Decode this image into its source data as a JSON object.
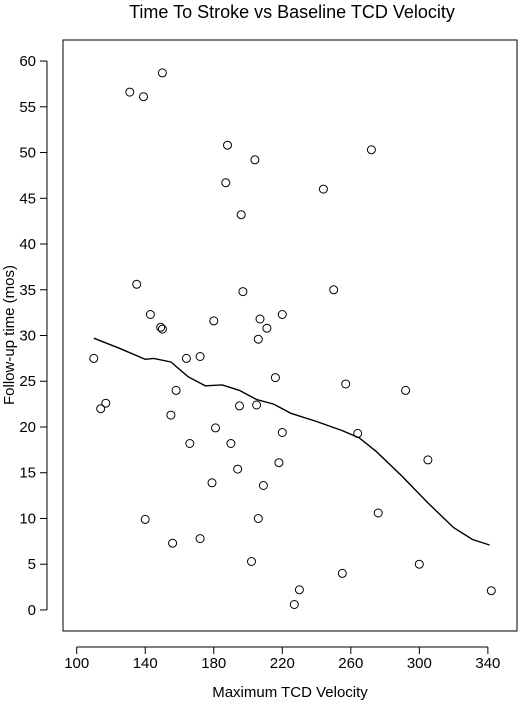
{
  "chart_data": {
    "type": "scatter",
    "title": "Time To Stroke vs Baseline TCD Velocity",
    "xlabel": "Maximum TCD Velocity",
    "ylabel": "Follow-up time (mos)",
    "xlim": [
      92,
      357
    ],
    "ylim": [
      -2.3,
      62.3
    ],
    "xticks": [
      100,
      140,
      180,
      220,
      260,
      300,
      340
    ],
    "yticks": [
      0,
      5,
      10,
      15,
      20,
      25,
      30,
      35,
      40,
      45,
      50,
      55,
      60
    ],
    "grid": false,
    "legend": "none",
    "series": [
      {
        "kind": "points",
        "points": [
          [
            110,
            27.5
          ],
          [
            114,
            22.0
          ],
          [
            117,
            22.6
          ],
          [
            131,
            56.6
          ],
          [
            135,
            35.6
          ],
          [
            139,
            56.1
          ],
          [
            140,
            9.9
          ],
          [
            143,
            32.3
          ],
          [
            149,
            30.9
          ],
          [
            150,
            58.7
          ],
          [
            150,
            30.7
          ],
          [
            155,
            21.3
          ],
          [
            156,
            7.3
          ],
          [
            158,
            24.0
          ],
          [
            164,
            27.5
          ],
          [
            166,
            18.2
          ],
          [
            172,
            27.7
          ],
          [
            172,
            7.8
          ],
          [
            179,
            13.9
          ],
          [
            180,
            31.6
          ],
          [
            181,
            19.9
          ],
          [
            187,
            46.7
          ],
          [
            188,
            50.8
          ],
          [
            190,
            18.2
          ],
          [
            194,
            15.4
          ],
          [
            195,
            22.3
          ],
          [
            196,
            43.2
          ],
          [
            197,
            34.8
          ],
          [
            202,
            5.3
          ],
          [
            204,
            49.2
          ],
          [
            205,
            22.4
          ],
          [
            206,
            10.0
          ],
          [
            206,
            29.6
          ],
          [
            207,
            31.8
          ],
          [
            209,
            13.6
          ],
          [
            211,
            30.8
          ],
          [
            216,
            25.4
          ],
          [
            218,
            16.1
          ],
          [
            220,
            19.4
          ],
          [
            220,
            32.3
          ],
          [
            227,
            0.6
          ],
          [
            230,
            2.2
          ],
          [
            244,
            46.0
          ],
          [
            250,
            35.0
          ],
          [
            255,
            4.0
          ],
          [
            257,
            24.7
          ],
          [
            264,
            19.3
          ],
          [
            272,
            50.3
          ],
          [
            276,
            10.6
          ],
          [
            292,
            24.0
          ],
          [
            300,
            5.0
          ],
          [
            305,
            16.4
          ],
          [
            342,
            2.1
          ]
        ]
      },
      {
        "kind": "smooth-line",
        "points": [
          [
            110,
            29.7
          ],
          [
            125,
            28.6
          ],
          [
            140,
            27.4
          ],
          [
            145,
            27.5
          ],
          [
            155,
            27.1
          ],
          [
            165,
            25.5
          ],
          [
            175,
            24.5
          ],
          [
            185,
            24.6
          ],
          [
            195,
            24.0
          ],
          [
            205,
            23.0
          ],
          [
            215,
            22.5
          ],
          [
            225,
            21.5
          ],
          [
            240,
            20.6
          ],
          [
            255,
            19.6
          ],
          [
            265,
            18.8
          ],
          [
            275,
            17.3
          ],
          [
            290,
            14.6
          ],
          [
            305,
            11.7
          ],
          [
            320,
            9.0
          ],
          [
            331,
            7.7
          ],
          [
            341,
            7.1
          ]
        ]
      }
    ]
  }
}
